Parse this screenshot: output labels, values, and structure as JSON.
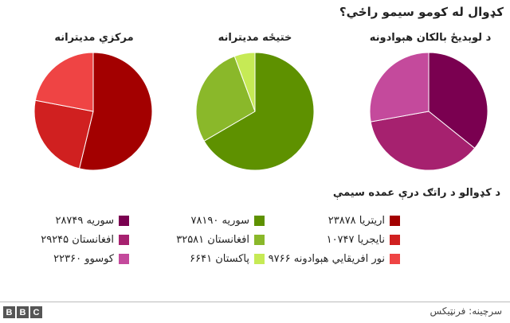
{
  "chart_data": {
    "title": "کډوال له کومو سیمو راځي؟",
    "subtitle": "د کډوالو د راتګ درې عمده سیمې",
    "charts": [
      {
        "type": "pie",
        "title": "د لوېديځ بالکان هېوادونه",
        "slices": [
          {
            "label": "سوریه",
            "value": 28749,
            "value_text": "۲۸۷۴۹",
            "color": "#7a0050"
          },
          {
            "label": "افغانستان",
            "value": 29245,
            "value_text": "۲۹۲۴۵",
            "color": "#a6216f"
          },
          {
            "label": "کوسوو",
            "value": 22360,
            "value_text": "۲۲۳۶۰",
            "color": "#c44a9c"
          }
        ]
      },
      {
        "type": "pie",
        "title": "ختيځه مديترانه",
        "slices": [
          {
            "label": "سوریه",
            "value": 78190,
            "value_text": "۷۸۱۹۰",
            "color": "#5e9100"
          },
          {
            "label": "افغانستان",
            "value": 32581,
            "value_text": "۳۲۵۸۱",
            "color": "#8ab82a"
          },
          {
            "label": "پاکستان",
            "value": 6641,
            "value_text": "۶۶۴۱",
            "color": "#c6ea55"
          }
        ]
      },
      {
        "type": "pie",
        "title": "مرکزي مديترانه",
        "slices": [
          {
            "label": "اريتريا",
            "value": 23878,
            "value_text": "۲۳۸۷۸",
            "color": "#a30000"
          },
          {
            "label": "نايجريا",
            "value": 10747,
            "value_text": "۱۰۷۴۷",
            "color": "#d02020"
          },
          {
            "label": "نور افريقايي هېوادونه",
            "value": 9766,
            "value_text": "۹۷۶۶",
            "color": "#ef4444"
          }
        ]
      }
    ]
  },
  "source": "سرچينه: فرنټيکس",
  "logo": [
    "B",
    "B",
    "C"
  ]
}
